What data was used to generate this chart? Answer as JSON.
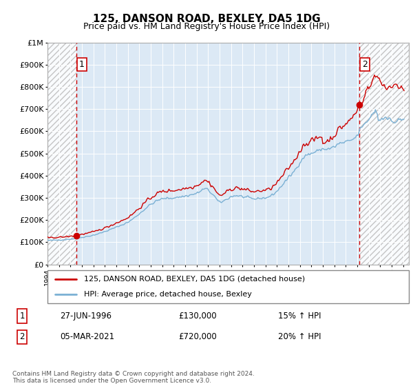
{
  "title": "125, DANSON ROAD, BEXLEY, DA5 1DG",
  "subtitle": "Price paid vs. HM Land Registry's House Price Index (HPI)",
  "sale1_year": 1996.49,
  "sale1_price": 130000,
  "sale2_year": 2021.17,
  "sale2_price": 720000,
  "legend_line1": "125, DANSON ROAD, BEXLEY, DA5 1DG (detached house)",
  "legend_line2": "HPI: Average price, detached house, Bexley",
  "table_row1": [
    "1",
    "27-JUN-1996",
    "£130,000",
    "15% ↑ HPI"
  ],
  "table_row2": [
    "2",
    "05-MAR-2021",
    "£720,000",
    "20% ↑ HPI"
  ],
  "footnote": "Contains HM Land Registry data © Crown copyright and database right 2024.\nThis data is licensed under the Open Government Licence v3.0.",
  "xmin": 1994,
  "xmax": 2025.5,
  "ymin": 0,
  "ymax": 1000000,
  "yticks": [
    0,
    100000,
    200000,
    300000,
    400000,
    500000,
    600000,
    700000,
    800000,
    900000,
    1000000
  ],
  "ytick_labels": [
    "£0",
    "£100K",
    "£200K",
    "£300K",
    "£400K",
    "£500K",
    "£600K",
    "£700K",
    "£800K",
    "£900K",
    "£1M"
  ],
  "xticks": [
    1994,
    1995,
    1996,
    1997,
    1998,
    1999,
    2000,
    2001,
    2002,
    2003,
    2004,
    2005,
    2006,
    2007,
    2008,
    2009,
    2010,
    2011,
    2012,
    2013,
    2014,
    2015,
    2016,
    2017,
    2018,
    2019,
    2020,
    2021,
    2022,
    2023,
    2024,
    2025
  ],
  "bg_color": "#dce9f5",
  "grid_color": "#ffffff",
  "red_line_color": "#cc0000",
  "blue_line_color": "#7ab0d4",
  "dashed_line_color": "#cc0000",
  "fig_bg": "#f5f5f5"
}
